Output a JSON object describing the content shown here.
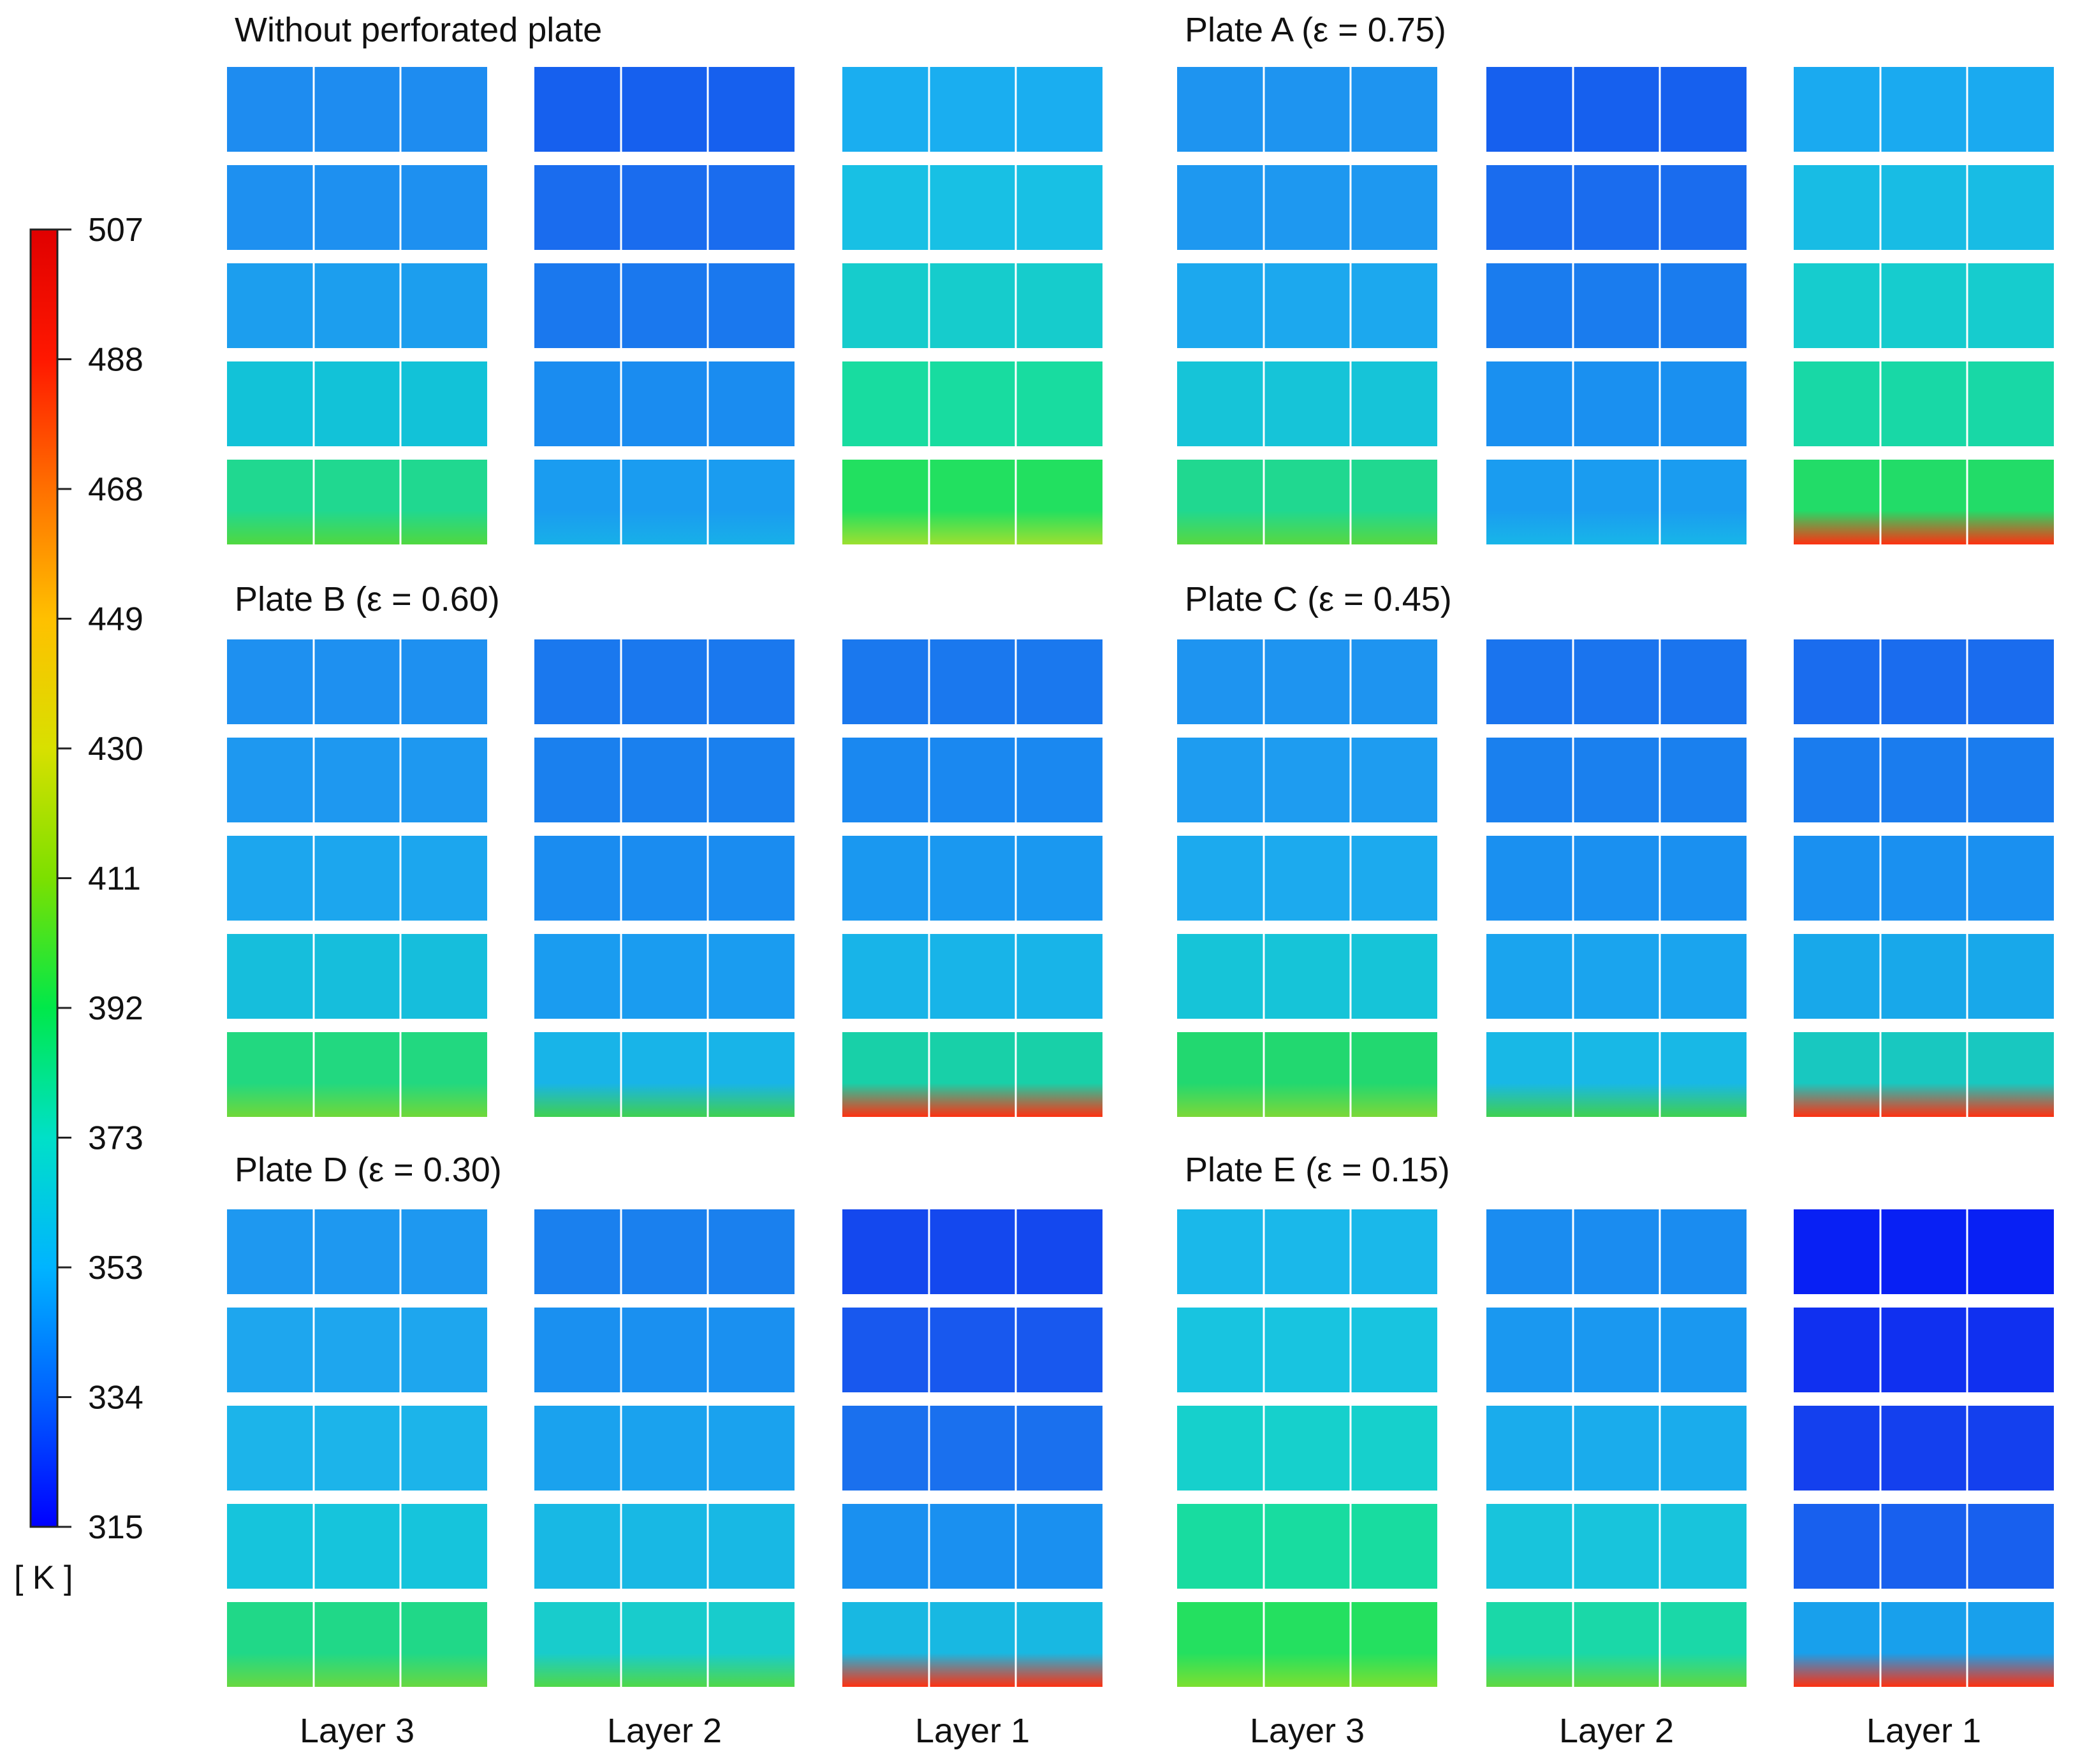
{
  "colorbar": {
    "unit": "[ K ]",
    "ticks": [
      "507",
      "488",
      "468",
      "449",
      "430",
      "411",
      "392",
      "373",
      "353",
      "334",
      "315"
    ],
    "min_value": 315,
    "max_value": 507,
    "colors": [
      "#0000ff",
      "#0060ff",
      "#00b4ff",
      "#00e0c8",
      "#00e84a",
      "#7ce000",
      "#d8e000",
      "#ffc000",
      "#ff7000",
      "#ff1800",
      "#e00000"
    ]
  },
  "panels": [
    {
      "title": "Without perforated plate",
      "layers": [
        {
          "name": "Layer 3",
          "rows": [
            "#1e8cf0",
            "#1e90f0",
            "#1c9eee",
            "#12c2d8",
            "#20d890"
          ],
          "bottom": "#50d840"
        },
        {
          "name": "Layer 2",
          "rows": [
            "#1660ee",
            "#1a6cee",
            "#1a78ee",
            "#1a8cf0",
            "#1a9cf0"
          ],
          "bottom": "#18b0e8"
        },
        {
          "name": "Layer 1",
          "rows": [
            "#1aaef0",
            "#18c0e4",
            "#16cccc",
            "#18dca0",
            "#22e060"
          ],
          "bottom": "#9ce030"
        }
      ]
    },
    {
      "title": "Plate A (ε = 0.75)",
      "layers": [
        {
          "name": "Layer 3",
          "rows": [
            "#1e94f0",
            "#1e98f0",
            "#1ca8ee",
            "#16c4d8",
            "#20d890"
          ],
          "bottom": "#58d840"
        },
        {
          "name": "Layer 2",
          "rows": [
            "#1660ee",
            "#1a6cee",
            "#1a7cee",
            "#1a90f0",
            "#1a9cf0"
          ],
          "bottom": "#18b6e8"
        },
        {
          "name": "Layer 1",
          "rows": [
            "#1aaaf0",
            "#18bce4",
            "#16ccce",
            "#18d8a6",
            "#22dc68"
          ],
          "bottom": "#ff3010"
        }
      ]
    },
    {
      "title": "Plate B (ε = 0.60)",
      "layers": [
        {
          "name": "Layer 3",
          "rows": [
            "#1e90f0",
            "#1e98f0",
            "#1ca6ee",
            "#16bedc",
            "#22d880"
          ],
          "bottom": "#70d838"
        },
        {
          "name": "Layer 2",
          "rows": [
            "#1a78ee",
            "#1a80ee",
            "#1a8cf0",
            "#1a9cf0",
            "#18b4e8"
          ],
          "bottom": "#40d050"
        },
        {
          "name": "Layer 1",
          "rows": [
            "#1a78ee",
            "#1a88f0",
            "#1a98f0",
            "#18b4e8",
            "#18d0a8"
          ],
          "bottom": "#ff3010"
        }
      ]
    },
    {
      "title": "Plate C (ε = 0.45)",
      "layers": [
        {
          "name": "Layer 3",
          "rows": [
            "#1e94f0",
            "#1e9cf0",
            "#1caaee",
            "#16c4d8",
            "#22d870"
          ],
          "bottom": "#7cd838"
        },
        {
          "name": "Layer 2",
          "rows": [
            "#1a74ee",
            "#1a80ee",
            "#1a90f0",
            "#1aa4ee",
            "#18b8e6"
          ],
          "bottom": "#40d050"
        },
        {
          "name": "Layer 1",
          "rows": [
            "#1a6cee",
            "#1a7cee",
            "#1a90f0",
            "#18a8ea",
            "#18c8c0"
          ],
          "bottom": "#ff3010"
        }
      ]
    },
    {
      "title": "Plate D (ε = 0.30)",
      "layers": [
        {
          "name": "Layer 3",
          "rows": [
            "#1e98f0",
            "#1ea6ee",
            "#1cb4ea",
            "#16c4dc",
            "#20d888"
          ],
          "bottom": "#68d840"
        },
        {
          "name": "Layer 2",
          "rows": [
            "#1a80ee",
            "#1a90f0",
            "#1aa2ee",
            "#18b8e4",
            "#18cccc"
          ],
          "bottom": "#50d848"
        },
        {
          "name": "Layer 1",
          "rows": [
            "#1448ee",
            "#1858ee",
            "#1a70ee",
            "#1a90f0",
            "#18b8e2"
          ],
          "bottom": "#ff3010"
        }
      ]
    },
    {
      "title": "Plate E (ε = 0.15)",
      "layers": [
        {
          "name": "Layer 3",
          "rows": [
            "#1ab8ea",
            "#18c4e0",
            "#16d0cc",
            "#18dca0",
            "#24e060"
          ],
          "bottom": "#7ce030"
        },
        {
          "name": "Layer 2",
          "rows": [
            "#1a8cf0",
            "#1a98f0",
            "#1aacec",
            "#18c4dc",
            "#1ad8a8"
          ],
          "bottom": "#60d840"
        },
        {
          "name": "Layer 1",
          "rows": [
            "#0820f4",
            "#1030f0",
            "#1440ee",
            "#1860ee",
            "#18a0ec"
          ],
          "bottom": "#ff3010"
        }
      ]
    }
  ],
  "bottom_labels": [
    "Layer 3",
    "Layer 2",
    "Layer 1",
    "Layer 3",
    "Layer 2",
    "Layer 1"
  ]
}
